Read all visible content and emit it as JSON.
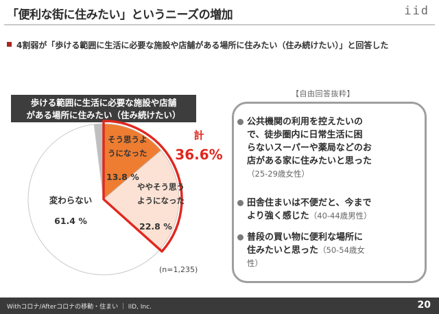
{
  "header": {
    "title": "「便利な街に住みたい」というニーズの増加",
    "logo": "iid"
  },
  "summary": {
    "text": "4割弱が「歩ける範囲に生活に必要な施設や店舗がある場所に住みたい（住み続けたい）」と回答した"
  },
  "question": {
    "line1": "歩ける範囲に生活に必要な施設や店舗",
    "line2": "がある場所に住みたい（住み続けたい）"
  },
  "chart_data": {
    "type": "pie",
    "slices": [
      {
        "label": "そう思うようになった",
        "value": 13.8,
        "value_label": "13.8 %",
        "color": "#ee7d31"
      },
      {
        "label": "ややそう思うようになった",
        "value": 22.8,
        "value_label": "22.8 %",
        "color": "#fbe2d4"
      },
      {
        "label": "変わらない",
        "value": 61.4,
        "value_label": "61.4 %",
        "color": "#ffffff"
      },
      {
        "label": "",
        "value": 2.0,
        "value_label": "",
        "color": "#bfbfbf"
      }
    ],
    "total_label": "計",
    "total_value": "36.6%",
    "n_label": "(n=1,235)"
  },
  "free_answers": {
    "heading": "【自由回答抜粋】",
    "items": [
      {
        "text1": "公共機関の利用を控えたいの",
        "text2": "で、徒歩圏内に日常生活に困",
        "text3": "らないスーパーや薬局などのお",
        "text4": "店がある家に住みたいと思った",
        "attr": "（25-29歳女性）"
      },
      {
        "text1": "田舎住まいは不便だと、今まで",
        "text2": "より強く感じた",
        "attr": "（40-44歳男性）"
      },
      {
        "text1": "普段の買い物に便利な場所に",
        "text2": "住みたいと思った",
        "attr1": "（50-54歳女",
        "attr2": "性）"
      }
    ]
  },
  "footer": {
    "text": "Withコロナ/Afterコロナの移動・住まい ｜ IID, Inc.",
    "page": "20"
  }
}
